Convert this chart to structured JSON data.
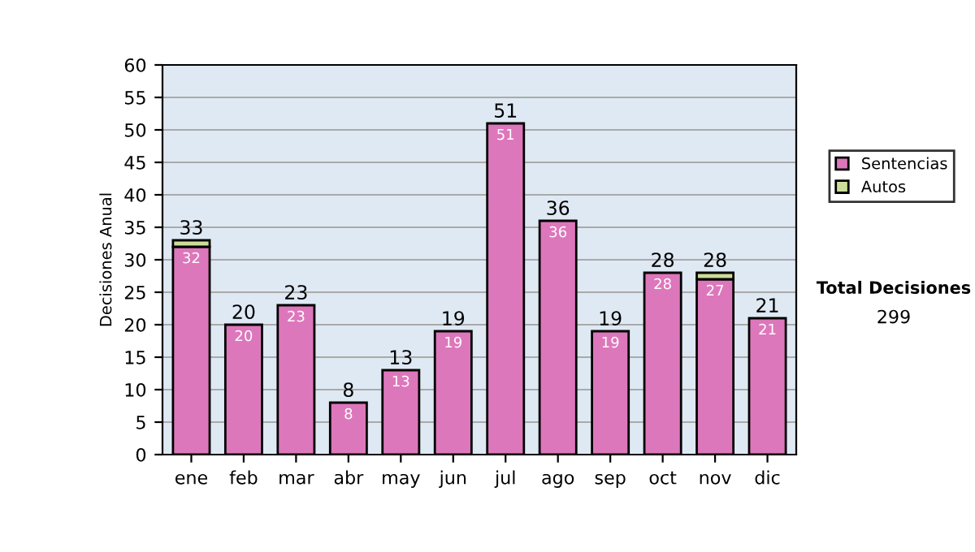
{
  "chart_data": {
    "type": "bar",
    "stacked": true,
    "ylabel": "Decisiones Anual",
    "categories": [
      "ene",
      "feb",
      "mar",
      "abr",
      "may",
      "jun",
      "jul",
      "ago",
      "sep",
      "oct",
      "nov",
      "dic"
    ],
    "series": [
      {
        "name": "Sentencias",
        "color": "#dd77bb",
        "values": [
          32,
          20,
          23,
          8,
          13,
          19,
          51,
          36,
          19,
          28,
          27,
          21
        ],
        "value_labels": [
          "32",
          "20",
          "23",
          "8",
          "13",
          "19",
          "51",
          "36",
          "19",
          "28",
          "27",
          "21"
        ]
      },
      {
        "name": "Autos",
        "color": "#ccdd99",
        "values": [
          1,
          0,
          0,
          0,
          0,
          0,
          0,
          0,
          0,
          0,
          1,
          0
        ]
      }
    ],
    "totals": [
      "33",
      "20",
      "23",
      "8",
      "13",
      "19",
      "51",
      "36",
      "19",
      "28",
      "28",
      "21"
    ],
    "ylim": [
      0,
      60
    ],
    "yticks": [
      0,
      5,
      10,
      15,
      20,
      25,
      30,
      35,
      40,
      45,
      50,
      55,
      60
    ],
    "grid": "y",
    "legend": "right",
    "annotations": [
      "Total Decisiones",
      "299"
    ]
  }
}
